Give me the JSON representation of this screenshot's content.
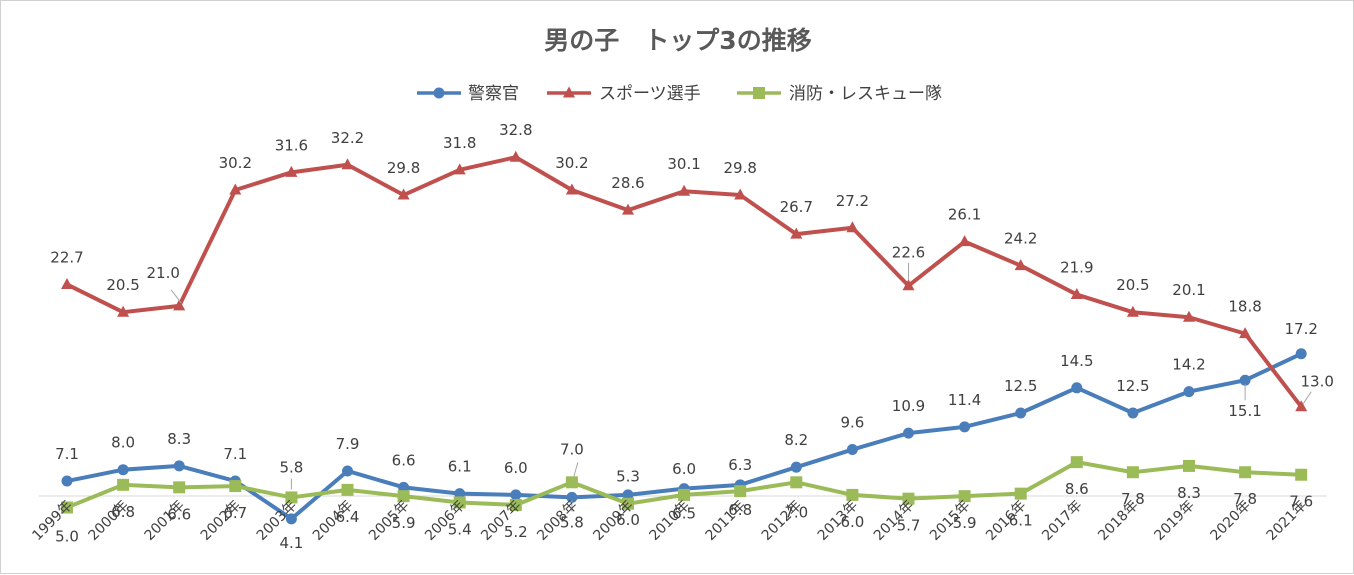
{
  "chart_data": {
    "type": "line",
    "title": "男の子　トップ3の推移",
    "categories": [
      "1999年",
      "2000年",
      "2001年",
      "2002年",
      "2003年",
      "2004年",
      "2005年",
      "2006年",
      "2007年",
      "2008年",
      "2009年",
      "2010年",
      "2011年",
      "2012年",
      "2013年",
      "2014年",
      "2015年",
      "2016年",
      "2017年",
      "2018年",
      "2019年",
      "2020年",
      "2021年"
    ],
    "series": [
      {
        "name": "警察官",
        "color": "#4a7ebb",
        "marker": "circle",
        "values": [
          7.1,
          8.0,
          8.3,
          7.1,
          4.1,
          7.9,
          6.6,
          6.1,
          6.0,
          5.8,
          6.0,
          6.5,
          6.8,
          8.2,
          9.6,
          10.9,
          11.4,
          12.5,
          14.5,
          12.5,
          14.2,
          15.1,
          17.2
        ]
      },
      {
        "name": "スポーツ選手",
        "color": "#c0504d",
        "marker": "triangle",
        "values": [
          22.7,
          20.5,
          21.0,
          30.2,
          31.6,
          32.2,
          29.8,
          31.8,
          32.8,
          30.2,
          28.6,
          30.1,
          29.8,
          26.7,
          27.2,
          22.6,
          26.1,
          24.2,
          21.9,
          20.5,
          20.1,
          18.8,
          13.0
        ]
      },
      {
        "name": "消防・レスキュー隊",
        "color": "#9bbb59",
        "marker": "square",
        "values": [
          5.0,
          6.8,
          6.6,
          6.7,
          5.8,
          6.4,
          5.9,
          5.4,
          5.2,
          7.0,
          5.3,
          6.0,
          6.3,
          7.0,
          6.0,
          5.7,
          5.9,
          6.1,
          8.6,
          7.8,
          8.3,
          7.8,
          7.6
        ]
      }
    ],
    "xlabel": "",
    "ylabel": "",
    "ylim": [
      0,
      35
    ],
    "grid": false,
    "legend_position": "top"
  }
}
